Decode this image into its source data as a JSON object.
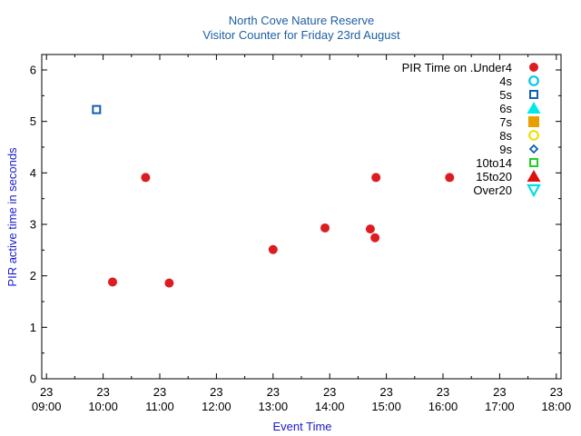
{
  "chart_data": {
    "type": "scatter",
    "title": "North Cove Nature Reserve",
    "subtitle": "Visitor Counter for Friday 23rd August",
    "xlabel": "Event Time",
    "ylabel": "PIR active time in seconds",
    "xlim": [
      "08:55",
      "18:05"
    ],
    "ylim": [
      0,
      6.3
    ],
    "yticks": [
      0,
      1,
      2,
      3,
      4,
      5,
      6
    ],
    "xticks": [
      {
        "day": "23",
        "time": "09:00"
      },
      {
        "day": "23",
        "time": "10:00"
      },
      {
        "day": "23",
        "time": "11:00"
      },
      {
        "day": "23",
        "time": "12:00"
      },
      {
        "day": "23",
        "time": "13:00"
      },
      {
        "day": "23",
        "time": "14:00"
      },
      {
        "day": "23",
        "time": "15:00"
      },
      {
        "day": "23",
        "time": "16:00"
      },
      {
        "day": "23",
        "time": "17:00"
      },
      {
        "day": "23",
        "time": "18:00"
      }
    ],
    "grid": false,
    "legend_title": "PIR Time on ..",
    "legend_position": "top-right",
    "series": [
      {
        "name": "Under4",
        "marker": "filled-circle",
        "color": "#dd1c22",
        "points": [
          {
            "x": "10:10",
            "y": 1.88
          },
          {
            "x": "10:45",
            "y": 3.91
          },
          {
            "x": "11:10",
            "y": 1.86
          },
          {
            "x": "13:00",
            "y": 2.51
          },
          {
            "x": "13:55",
            "y": 2.93
          },
          {
            "x": "14:43",
            "y": 2.91
          },
          {
            "x": "14:48",
            "y": 2.74
          },
          {
            "x": "14:49",
            "y": 3.91
          },
          {
            "x": "16:07",
            "y": 3.91
          }
        ]
      },
      {
        "name": "4s",
        "marker": "open-circle",
        "color": "#00c8f0",
        "points": []
      },
      {
        "name": "5s",
        "marker": "open-square",
        "color": "#1060b0",
        "points": [
          {
            "x": "09:53",
            "y": 5.23
          }
        ]
      },
      {
        "name": "6s",
        "marker": "filled-triangle-up",
        "color": "#00e8e8",
        "points": []
      },
      {
        "name": "7s",
        "marker": "filled-square",
        "color": "#e8a000",
        "points": []
      },
      {
        "name": "8s",
        "marker": "open-circle",
        "color": "#f0e000",
        "points": []
      },
      {
        "name": "9s",
        "marker": "open-diamond",
        "color": "#1060b0",
        "points": []
      },
      {
        "name": "10to14",
        "marker": "open-square",
        "color": "#20d020",
        "points": []
      },
      {
        "name": "15to20",
        "marker": "filled-triangle-up",
        "color": "#dd1010",
        "points": []
      },
      {
        "name": "Over20",
        "marker": "open-triangle-down",
        "color": "#00e0e0",
        "points": []
      }
    ]
  }
}
